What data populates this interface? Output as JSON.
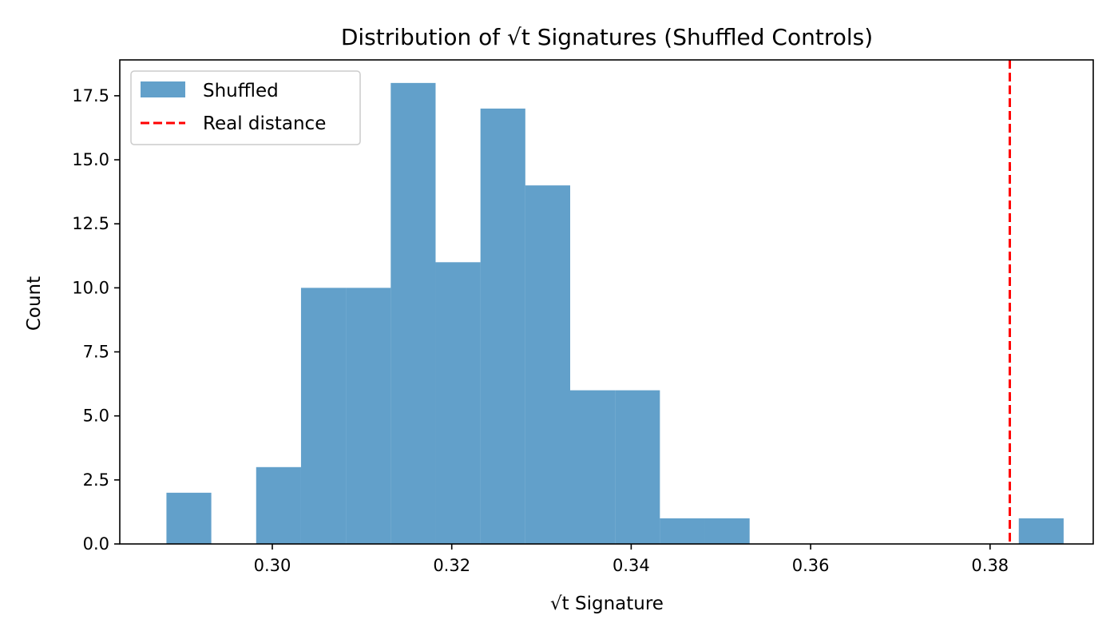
{
  "chart_data": {
    "type": "bar",
    "title": "Distribution of √t Signatures (Shuffled Controls)",
    "xlabel": "√t Signature",
    "ylabel": "Count",
    "xlim": [
      0.283,
      0.3915
    ],
    "ylim": [
      0,
      18.9
    ],
    "xticks": [
      0.3,
      0.32,
      0.34,
      0.36,
      0.38
    ],
    "xtick_labels": [
      "0.30",
      "0.32",
      "0.34",
      "0.36",
      "0.38"
    ],
    "yticks": [
      0.0,
      2.5,
      5.0,
      7.5,
      10.0,
      12.5,
      15.0,
      17.5
    ],
    "ytick_labels": [
      "0.0",
      "2.5",
      "5.0",
      "7.5",
      "10.0",
      "12.5",
      "15.0",
      "17.5"
    ],
    "bin_edges": [
      0.2882,
      0.2932,
      0.2982,
      0.3032,
      0.3082,
      0.3132,
      0.3182,
      0.3232,
      0.3282,
      0.3332,
      0.3382,
      0.3432,
      0.3482,
      0.3532,
      0.3582,
      0.3632,
      0.3682,
      0.3732,
      0.3782,
      0.3832,
      0.3882
    ],
    "series": [
      {
        "name": "Shuffled",
        "kind": "histogram",
        "color": "#1f77b4",
        "opacity": 0.7,
        "counts": [
          2,
          0,
          3,
          10,
          10,
          18,
          11,
          17,
          14,
          6,
          6,
          1,
          1,
          0,
          0,
          0,
          0,
          0,
          0,
          1
        ]
      },
      {
        "name": "Real distance",
        "kind": "vline",
        "color": "#ff0000",
        "x": 0.3822
      }
    ],
    "legend_position": "upper-left",
    "grid": false
  }
}
